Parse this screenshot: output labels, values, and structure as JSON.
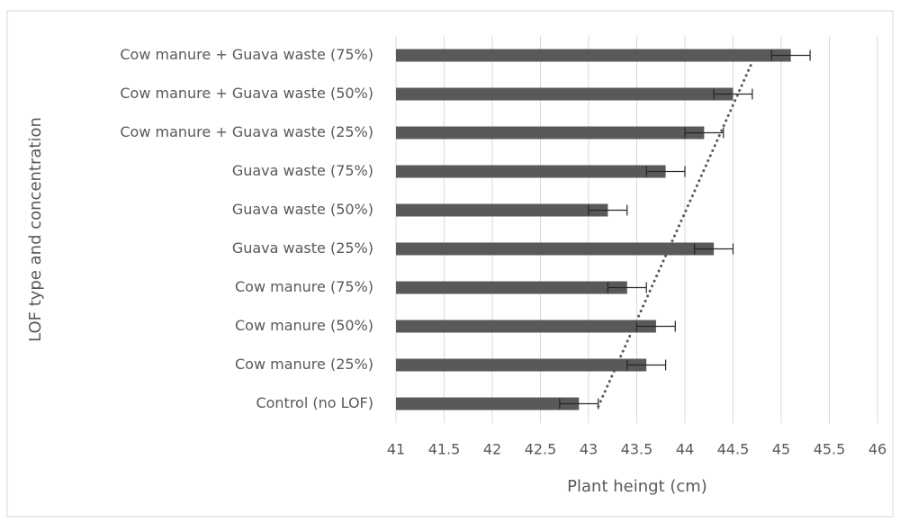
{
  "chart_data": {
    "type": "bar",
    "orientation": "horizontal",
    "categories": [
      "Cow manure + Guava waste (75%)",
      "Cow manure + Guava waste (50%)",
      "Cow manure + Guava waste (25%)",
      "Guava waste (75%)",
      "Guava waste (50%)",
      "Guava waste (25%)",
      "Cow manure (75%)",
      "Cow manure (50%)",
      "Cow manure (25%)",
      "Control (no LOF)"
    ],
    "values": [
      45.1,
      44.5,
      44.2,
      43.8,
      43.2,
      44.3,
      43.4,
      43.7,
      43.6,
      42.9
    ],
    "errors": [
      0.2,
      0.2,
      0.2,
      0.2,
      0.2,
      0.2,
      0.2,
      0.2,
      0.2,
      0.2
    ],
    "color": "#595959",
    "trendline": [
      44.73,
      43.08
    ],
    "xlabel": "Plant heingt (cm)",
    "ylabel": "LOF type and concentration",
    "xlim": [
      41,
      46
    ],
    "xticks": [
      41,
      41.5,
      42,
      42.5,
      43,
      43.5,
      44,
      44.5,
      45,
      45.5,
      46
    ],
    "grid": true
  }
}
